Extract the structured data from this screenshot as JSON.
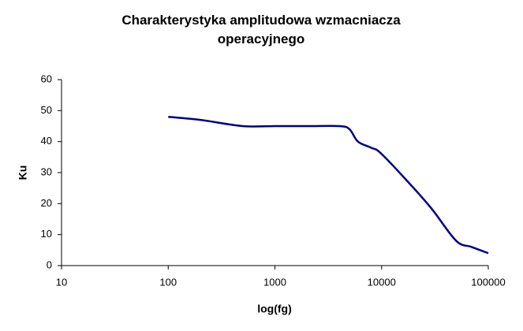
{
  "chart_data": {
    "type": "line",
    "title": "Charakterystyka amplitudowa wzmacniacza operacyjnego",
    "x_label": "log(fg)",
    "y_label": "Ku",
    "x": [
      100,
      200,
      500,
      1000,
      2000,
      4000,
      5000,
      6000,
      8000,
      10000,
      20000,
      30000,
      50000,
      70000,
      100000
    ],
    "series": [
      {
        "name": "Ku",
        "color": "#000080",
        "values": [
          48,
          47,
          45,
          45,
          45,
          45,
          44,
          40,
          38,
          36,
          25,
          18,
          8,
          6,
          4
        ]
      }
    ],
    "xlim": [
      10,
      100000
    ],
    "xticks": [
      10,
      100,
      1000,
      10000,
      100000
    ],
    "xscale": "log",
    "ylim": [
      0,
      60
    ],
    "yticks": [
      0,
      10,
      20,
      30,
      40,
      50,
      60
    ],
    "grid": false
  }
}
